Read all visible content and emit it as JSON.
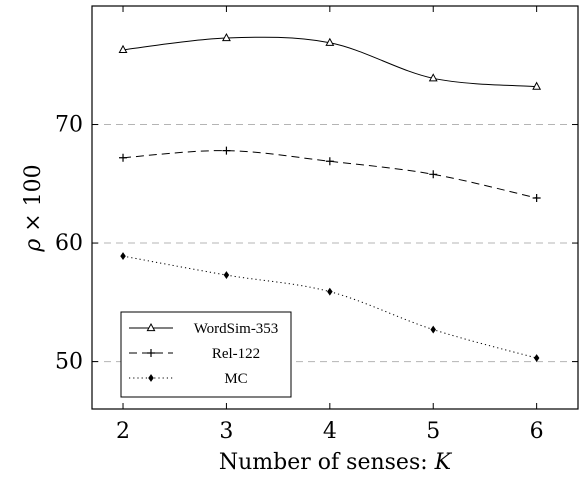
{
  "chart_data": {
    "type": "line",
    "title": "",
    "xlabel_prefix": "Number of senses: ",
    "xlabel_var": "K",
    "ylabel_var": "ρ",
    "ylabel_rest": " × 100",
    "x": [
      2,
      3,
      4,
      5,
      6
    ],
    "xlim": [
      1.7,
      6.4
    ],
    "ylim": [
      46,
      80
    ],
    "xticks": [
      2,
      3,
      4,
      5,
      6
    ],
    "yticks": [
      50,
      60,
      70
    ],
    "grid": "horizontal dashed at y ticks",
    "legend_position": "bottom-left",
    "series": [
      {
        "name": "WordSim-353",
        "marker": "triangle",
        "dash": "solid",
        "values": [
          76.3,
          77.3,
          76.9,
          73.9,
          73.2
        ]
      },
      {
        "name": "Rel-122",
        "marker": "plus",
        "dash": "dashed",
        "values": [
          67.2,
          67.8,
          66.9,
          65.8,
          63.8
        ]
      },
      {
        "name": "MC",
        "marker": "diamond",
        "dash": "dotted",
        "values": [
          58.9,
          57.3,
          55.9,
          52.7,
          50.3
        ]
      }
    ]
  }
}
